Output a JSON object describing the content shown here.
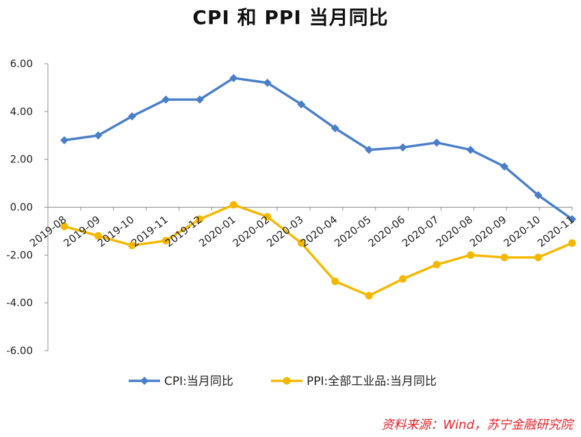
{
  "chart_data": {
    "type": "line",
    "title": "CPI 和 PPI 当月同比",
    "categories": [
      "2019-08",
      "2019-09",
      "2019-10",
      "2019-11",
      "2019-12",
      "2020-01",
      "2020-02",
      "2020-03",
      "2020-04",
      "2020-05",
      "2020-06",
      "2020-07",
      "2020-08",
      "2020-09",
      "2020-10",
      "2020-11"
    ],
    "ylim": [
      -6,
      6
    ],
    "yticks": [
      "6.00",
      "4.00",
      "2.00",
      "0.00",
      "-2.00",
      "-4.00",
      "-6.00"
    ],
    "ytick_values": [
      6,
      4,
      2,
      0,
      -2,
      -4,
      -6
    ],
    "grid": false,
    "legend_position": "bottom",
    "series": [
      {
        "name": "CPI:当月同比",
        "color": "#4a7fc8",
        "marker": "diamond",
        "values": [
          2.8,
          3.0,
          3.8,
          4.5,
          4.5,
          5.4,
          5.2,
          4.3,
          3.3,
          2.4,
          2.5,
          2.7,
          2.4,
          1.7,
          0.5,
          -0.5
        ]
      },
      {
        "name": "PPI:全部工业品:当月同比",
        "color": "#f5b800",
        "marker": "circle",
        "values": [
          -0.8,
          -1.2,
          -1.6,
          -1.4,
          -0.5,
          0.1,
          -0.4,
          -1.5,
          -3.1,
          -3.7,
          -3.0,
          -2.4,
          -2.0,
          -2.1,
          -2.1,
          -1.5
        ]
      }
    ],
    "source": "资料来源：Wind，苏宁金融研究院"
  }
}
